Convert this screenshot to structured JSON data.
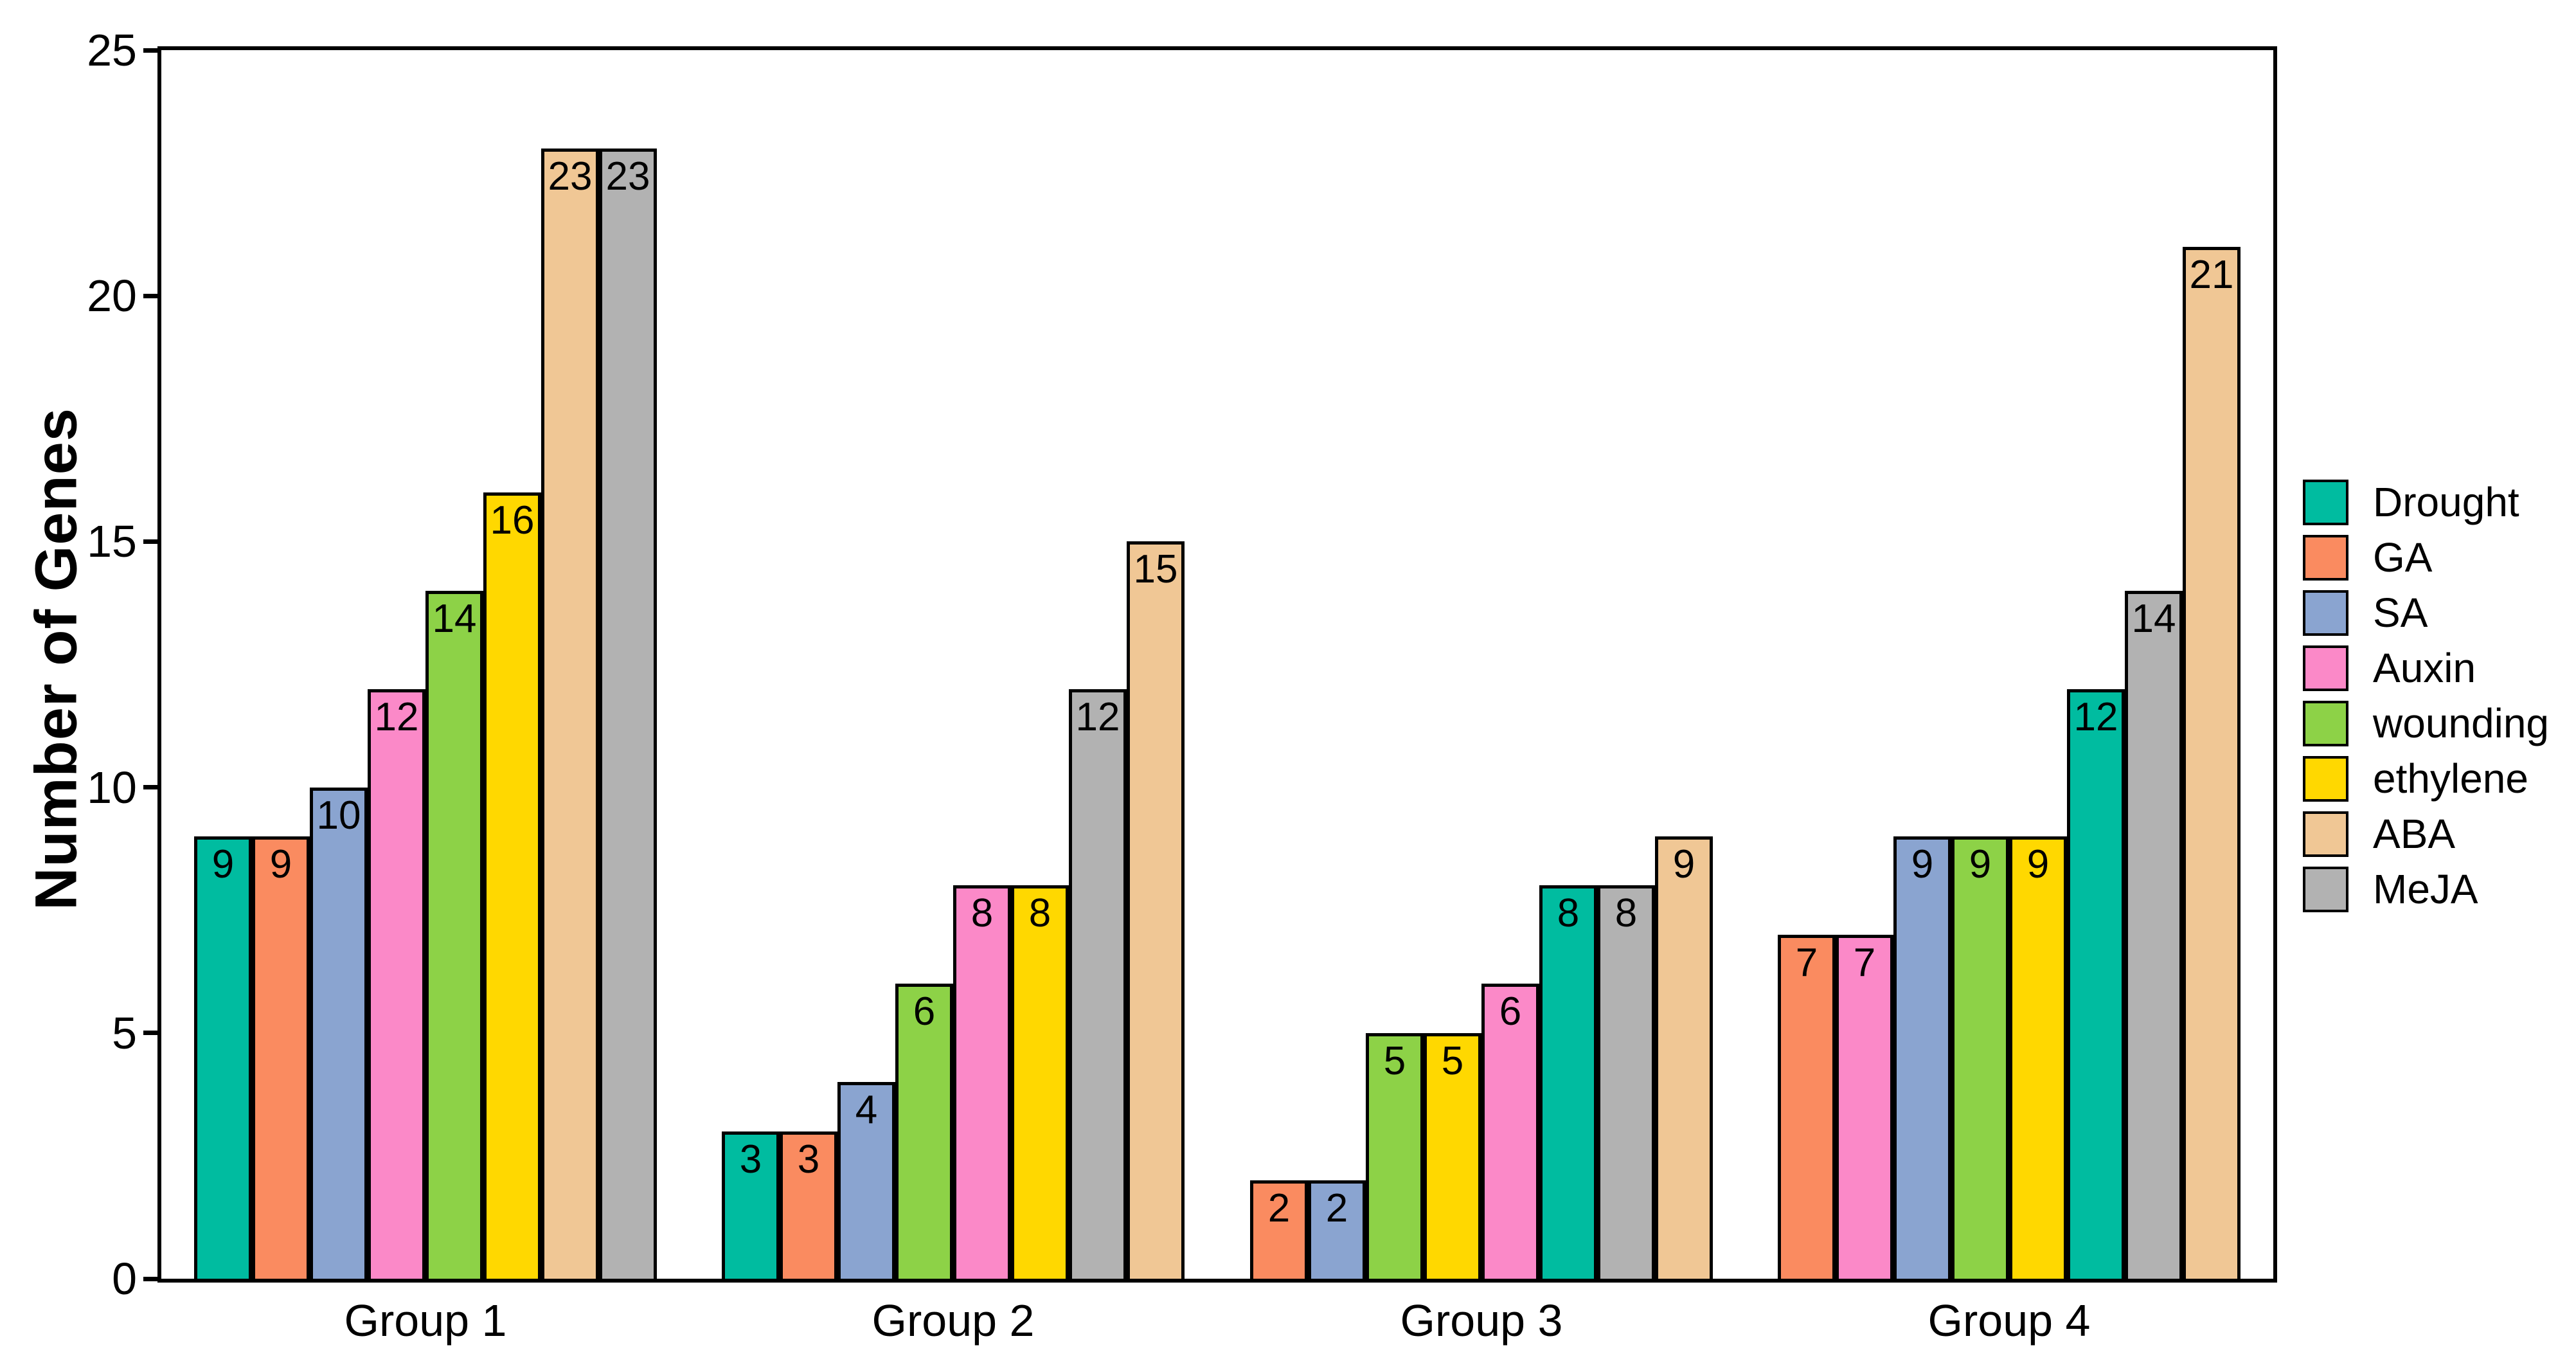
{
  "figure": {
    "background": "#ffffff",
    "axis_color": "#000000",
    "text_color": "#000000"
  },
  "y_axis": {
    "title": "Number of Genes",
    "tick_labels": [
      "0",
      "5",
      "10",
      "15",
      "20",
      "25"
    ]
  },
  "x_axis": {
    "categories": [
      "Group 1",
      "Group 2",
      "Group 3",
      "Group 4"
    ]
  },
  "legend": {
    "position": "right",
    "items": [
      {
        "label": "Drought",
        "color": "#00BCA0"
      },
      {
        "label": "GA",
        "color": "#FA8B60"
      },
      {
        "label": "SA",
        "color": "#8AA4D0"
      },
      {
        "label": "Auxin",
        "color": "#FB89C8"
      },
      {
        "label": "wounding",
        "color": "#8DD247"
      },
      {
        "label": "ethylene",
        "color": "#FFD800"
      },
      {
        "label": "ABA",
        "color": "#F0C795"
      },
      {
        "label": "MeJA",
        "color": "#B2B2B2"
      }
    ]
  },
  "chart_data": {
    "type": "bar",
    "title": "",
    "xlabel": "",
    "ylabel": "Number of Genes",
    "ylim": [
      0,
      25
    ],
    "yticks": [
      0,
      5,
      10,
      15,
      20,
      25
    ],
    "grid": false,
    "bar_value_labels": true,
    "legend_position": "right",
    "categories": [
      "Group 1",
      "Group 2",
      "Group 3",
      "Group 4"
    ],
    "series_order_note": "bars sorted ascending within each group",
    "groups": [
      {
        "category": "Group 1",
        "bars": [
          {
            "series": "Drought",
            "value": 9
          },
          {
            "series": "GA",
            "value": 9
          },
          {
            "series": "SA",
            "value": 10
          },
          {
            "series": "Auxin",
            "value": 12
          },
          {
            "series": "wounding",
            "value": 14
          },
          {
            "series": "ethylene",
            "value": 16
          },
          {
            "series": "ABA",
            "value": 23
          },
          {
            "series": "MeJA",
            "value": 23
          }
        ]
      },
      {
        "category": "Group 2",
        "bars": [
          {
            "series": "Drought",
            "value": 3
          },
          {
            "series": "GA",
            "value": 3
          },
          {
            "series": "SA",
            "value": 4
          },
          {
            "series": "wounding",
            "value": 6
          },
          {
            "series": "Auxin",
            "value": 8
          },
          {
            "series": "ethylene",
            "value": 8
          },
          {
            "series": "MeJA",
            "value": 12
          },
          {
            "series": "ABA",
            "value": 15
          }
        ]
      },
      {
        "category": "Group 3",
        "bars": [
          {
            "series": "GA",
            "value": 2
          },
          {
            "series": "SA",
            "value": 2
          },
          {
            "series": "wounding",
            "value": 5
          },
          {
            "series": "ethylene",
            "value": 5
          },
          {
            "series": "Auxin",
            "value": 6
          },
          {
            "series": "Drought",
            "value": 8
          },
          {
            "series": "MeJA",
            "value": 8
          },
          {
            "series": "ABA",
            "value": 9
          }
        ]
      },
      {
        "category": "Group 4",
        "bars": [
          {
            "series": "GA",
            "value": 7
          },
          {
            "series": "Auxin",
            "value": 7
          },
          {
            "series": "SA",
            "value": 9
          },
          {
            "series": "wounding",
            "value": 9
          },
          {
            "series": "ethylene",
            "value": 9
          },
          {
            "series": "Drought",
            "value": 12
          },
          {
            "series": "MeJA",
            "value": 14
          },
          {
            "series": "ABA",
            "value": 21
          }
        ]
      }
    ]
  }
}
